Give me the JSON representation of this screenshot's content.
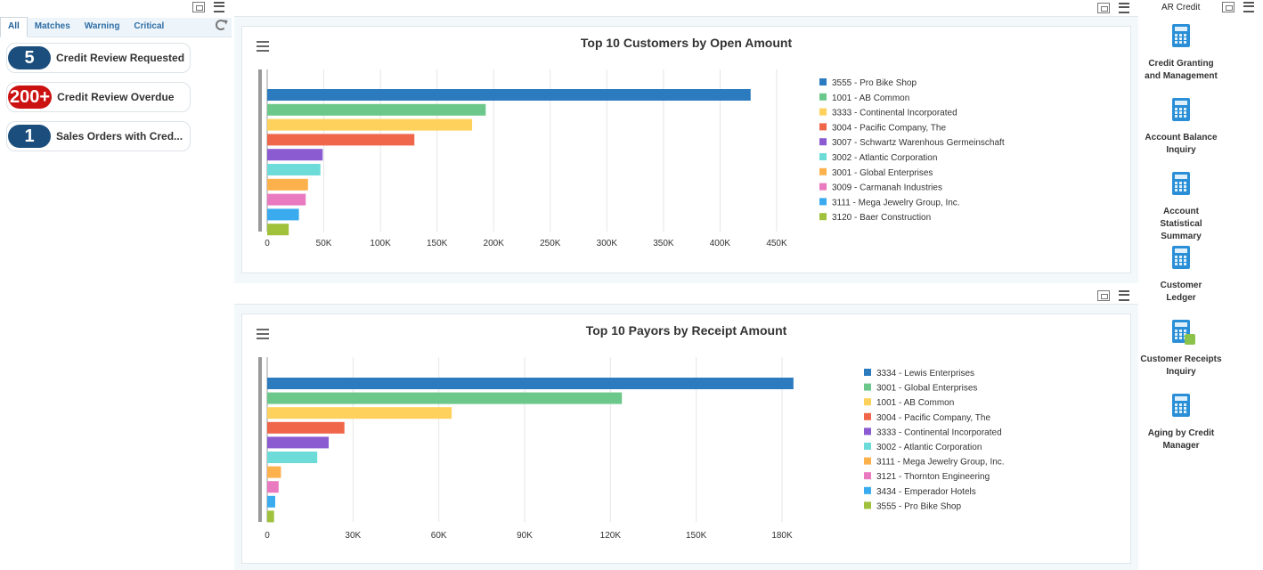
{
  "left": {
    "tabs": [
      "All",
      "Matches",
      "Warning",
      "Critical"
    ],
    "cards": [
      {
        "count": "5",
        "label": "Credit Review Requested",
        "color": "#1b4e7c"
      },
      {
        "count": "200+",
        "label": "Credit Review Overdue",
        "color": "#cc1111"
      },
      {
        "count": "1",
        "label": "Sales Orders with Cred...",
        "color": "#1b4e7c"
      }
    ]
  },
  "chart_data": [
    {
      "type": "bar",
      "orientation": "horizontal",
      "title": "Top 10 Customers by Open Amount",
      "categories": [
        "3555 - Pro Bike Shop",
        "1001 - AB Common",
        "3333 - Continental Incorporated",
        "3004 - Pacific Company, The",
        "3007 - Schwartz Warenhous Germeinschaft",
        "3002 - Atlantic Corporation",
        "3001 - Global Enterprises",
        "3009 - Carmanah Industries",
        "3111 - Mega Jewelry Group, Inc.",
        "3120 - Baer Construction"
      ],
      "values": [
        427000,
        193000,
        181000,
        130000,
        49000,
        47000,
        36000,
        34000,
        28000,
        19000
      ],
      "colors": [
        "#2c7bbf",
        "#6cc88a",
        "#fdd15c",
        "#f0664a",
        "#8a5bd1",
        "#6ddcd9",
        "#fdb14d",
        "#e97ac0",
        "#3aabee",
        "#9fc13c"
      ],
      "xticks": [
        "0",
        "50K",
        "100K",
        "150K",
        "200K",
        "250K",
        "300K",
        "350K",
        "400K",
        "450K"
      ],
      "xlim": [
        0,
        450000
      ],
      "legend": "right",
      "grid": true
    },
    {
      "type": "bar",
      "orientation": "horizontal",
      "title": "Top 10 Payors by Receipt Amount",
      "categories": [
        "3334 - Lewis Enterprises",
        "3001 - Global Enterprises",
        "1001 - AB Common",
        "3004 - Pacific Company, The",
        "3333 - Continental Incorporated",
        "3002 - Atlantic Corporation",
        "3111 - Mega Jewelry Group, Inc.",
        "3121 - Thornton Engineering",
        "3434 - Emperador Hotels",
        "3555 - Pro Bike Shop"
      ],
      "values": [
        184000,
        124000,
        64500,
        27000,
        21500,
        17500,
        4800,
        4000,
        2800,
        2400
      ],
      "colors": [
        "#2c7bbf",
        "#6cc88a",
        "#fdd15c",
        "#f0664a",
        "#8a5bd1",
        "#6ddcd9",
        "#fdb14d",
        "#e97ac0",
        "#3aabee",
        "#9fc13c"
      ],
      "xticks": [
        "0",
        "30K",
        "60K",
        "90K",
        "120K",
        "150K",
        "180K"
      ],
      "xlim": [
        0,
        180000
      ],
      "legend": "right",
      "grid": true
    }
  ],
  "right": {
    "title": "AR Credit",
    "apps": [
      {
        "label": "Credit Granting and Management",
        "icon": "calculator-icon"
      },
      {
        "label": "Account Balance Inquiry",
        "icon": "calculator-icon"
      },
      {
        "label": "Account Statistical Summary",
        "icon": "calculator-icon"
      },
      {
        "label": "Customer Ledger Inquiry",
        "icon": "calculator-icon"
      },
      {
        "label": "Customer Receipts Inquiry",
        "icon": "calculator-search-icon"
      },
      {
        "label": "Aging by Credit Manager",
        "icon": "calculator-icon"
      }
    ]
  }
}
